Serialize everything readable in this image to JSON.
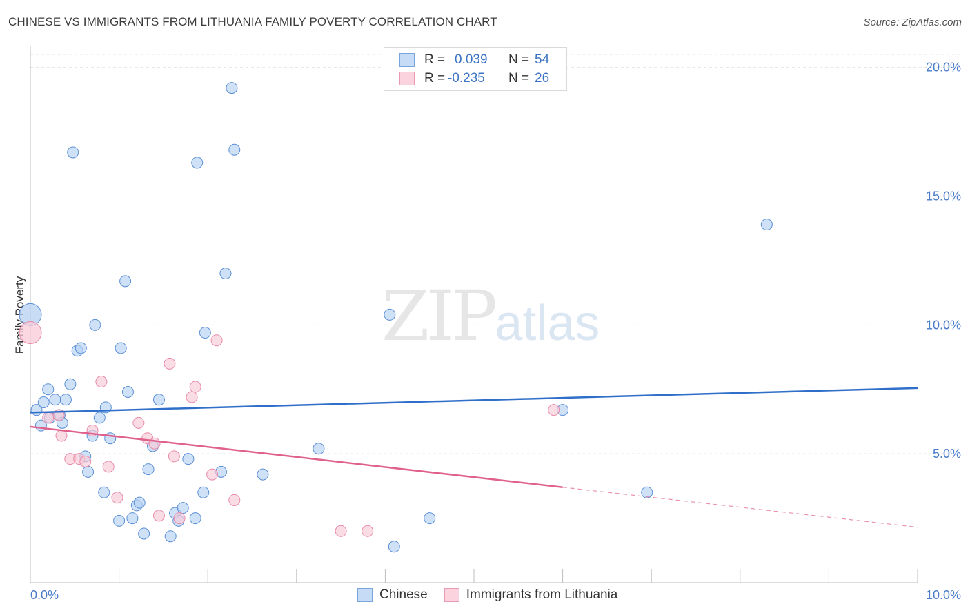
{
  "title": "CHINESE VS IMMIGRANTS FROM LITHUANIA FAMILY POVERTY CORRELATION CHART",
  "source": "Source: ZipAtlas.com",
  "watermark": {
    "zip": "ZIP",
    "atlas": "atlas"
  },
  "legend": {
    "rows": [
      {
        "r_label": "R =",
        "r_value": "0.039",
        "n_label": "N =",
        "n_value": "54",
        "color": "#a8c8f0"
      },
      {
        "r_label": "R =",
        "r_value": "-0.235",
        "n_label": "N =",
        "n_value": "26",
        "color": "#f6b8cb"
      }
    ]
  },
  "bottom_legend": [
    {
      "label": "Chinese",
      "color": "#a8c8f0"
    },
    {
      "label": "Immigrants from Lithuania",
      "color": "#f6b8cb"
    }
  ],
  "chart_data": {
    "type": "scatter",
    "title": "CHINESE VS IMMIGRANTS FROM LITHUANIA FAMILY POVERTY CORRELATION CHART",
    "xlabel": "",
    "ylabel": "Family Poverty",
    "xlim": [
      0,
      10
    ],
    "ylim": [
      0,
      20
    ],
    "x_tick_labels": [
      "0.0%",
      "10.0%"
    ],
    "y_tick_labels": [
      "5.0%",
      "10.0%",
      "15.0%",
      "20.0%"
    ],
    "y_ticks": [
      5,
      10,
      15,
      20
    ],
    "grid": true,
    "series": [
      {
        "name": "Chinese",
        "color": "#5b8fd6",
        "fill": "#b6d1f2",
        "trend": {
          "x0": 0,
          "y0": 6.6,
          "x1": 10,
          "y1": 7.55,
          "color": "#2f6fc9"
        },
        "points": [
          [
            0.0,
            10.4
          ],
          [
            0.07,
            6.7
          ],
          [
            0.12,
            6.1
          ],
          [
            0.15,
            7.0
          ],
          [
            0.2,
            7.5
          ],
          [
            0.22,
            6.4
          ],
          [
            0.28,
            7.1
          ],
          [
            0.33,
            6.5
          ],
          [
            0.36,
            6.2
          ],
          [
            0.4,
            7.1
          ],
          [
            0.45,
            7.7
          ],
          [
            0.48,
            16.7
          ],
          [
            0.53,
            9.0
          ],
          [
            0.57,
            9.1
          ],
          [
            0.62,
            4.9
          ],
          [
            0.65,
            4.3
          ],
          [
            0.7,
            5.7
          ],
          [
            0.73,
            10.0
          ],
          [
            0.78,
            6.4
          ],
          [
            0.83,
            3.5
          ],
          [
            0.85,
            6.8
          ],
          [
            0.9,
            5.6
          ],
          [
            1.0,
            2.4
          ],
          [
            1.02,
            9.1
          ],
          [
            1.07,
            11.7
          ],
          [
            1.1,
            7.4
          ],
          [
            1.15,
            2.5
          ],
          [
            1.2,
            3.0
          ],
          [
            1.23,
            3.1
          ],
          [
            1.28,
            1.9
          ],
          [
            1.33,
            4.4
          ],
          [
            1.38,
            5.3
          ],
          [
            1.45,
            7.1
          ],
          [
            1.58,
            1.8
          ],
          [
            1.63,
            2.7
          ],
          [
            1.67,
            2.4
          ],
          [
            1.72,
            2.9
          ],
          [
            1.78,
            4.8
          ],
          [
            1.86,
            2.5
          ],
          [
            1.88,
            16.3
          ],
          [
            1.95,
            3.5
          ],
          [
            1.97,
            9.7
          ],
          [
            2.15,
            4.3
          ],
          [
            2.2,
            12.0
          ],
          [
            2.27,
            19.2
          ],
          [
            2.3,
            16.8
          ],
          [
            2.62,
            4.2
          ],
          [
            3.25,
            5.2
          ],
          [
            4.05,
            10.4
          ],
          [
            4.1,
            1.4
          ],
          [
            4.5,
            2.5
          ],
          [
            6.0,
            6.7
          ],
          [
            6.95,
            3.5
          ],
          [
            8.3,
            13.9
          ]
        ]
      },
      {
        "name": "Immigrants from Lithuania",
        "color": "#e98aa9",
        "fill": "#f8c9d7",
        "trend": {
          "x0": 0,
          "y0": 6.05,
          "x1": 6.0,
          "y1": 3.7,
          "color": "#e0608e"
        },
        "trend_dashed": {
          "x0": 6.0,
          "y0": 3.7,
          "x1": 10,
          "y1": 2.15
        },
        "points": [
          [
            0.0,
            9.7
          ],
          [
            0.2,
            6.4
          ],
          [
            0.32,
            6.5
          ],
          [
            0.35,
            5.7
          ],
          [
            0.45,
            4.8
          ],
          [
            0.55,
            4.8
          ],
          [
            0.62,
            4.7
          ],
          [
            0.7,
            5.9
          ],
          [
            0.8,
            7.8
          ],
          [
            0.88,
            4.5
          ],
          [
            0.98,
            3.3
          ],
          [
            1.22,
            6.2
          ],
          [
            1.32,
            5.6
          ],
          [
            1.4,
            5.4
          ],
          [
            1.45,
            2.6
          ],
          [
            1.57,
            8.5
          ],
          [
            1.62,
            4.9
          ],
          [
            1.68,
            2.5
          ],
          [
            1.82,
            7.2
          ],
          [
            1.86,
            7.6
          ],
          [
            2.05,
            4.2
          ],
          [
            2.1,
            9.4
          ],
          [
            2.3,
            3.2
          ],
          [
            3.5,
            2.0
          ],
          [
            3.8,
            2.0
          ],
          [
            5.9,
            6.7
          ]
        ]
      }
    ]
  }
}
